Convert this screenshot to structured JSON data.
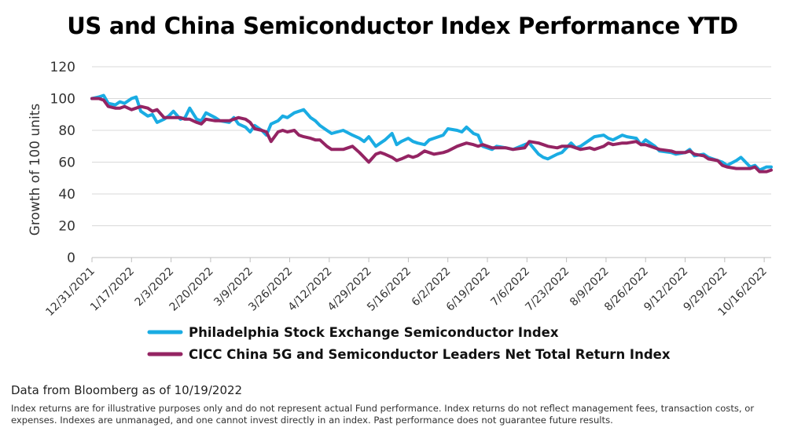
{
  "chart_data": {
    "type": "line",
    "title": "US and China Semiconductor Index Performance YTD",
    "ylabel": "Growth of 100 units",
    "xlabel": "",
    "ylim": [
      0,
      120
    ],
    "yticks": [
      "0",
      "20",
      "40",
      "60",
      "80",
      "100",
      "120"
    ],
    "x_tick_labels": [
      "12/31/2021",
      "1/17/2022",
      "2/3/2022",
      "2/20/2022",
      "3/9/2022",
      "3/26/2022",
      "4/12/2022",
      "4/29/2022",
      "5/16/2022",
      "6/2/2022",
      "6/19/2022",
      "7/6/2022",
      "7/23/2022",
      "8/9/2022",
      "8/26/2022",
      "9/12/2022",
      "9/29/2022",
      "10/16/2022"
    ],
    "x_range": [
      "12/31/2021",
      "10/19/2022"
    ],
    "legend_position": "bottom",
    "grid": "horizontal",
    "series": [
      {
        "name": "Philadelphia Stock Exchange Semiconductor Index",
        "color": "#1aace3",
        "dates": [
          "12/31/2021",
          "1/3/2022",
          "1/5/2022",
          "1/7/2022",
          "1/10/2022",
          "1/12/2022",
          "1/14/2022",
          "1/17/2022",
          "1/19/2022",
          "1/21/2022",
          "1/24/2022",
          "1/26/2022",
          "1/28/2022",
          "1/31/2022",
          "2/2/2022",
          "2/4/2022",
          "2/7/2022",
          "2/9/2022",
          "2/11/2022",
          "2/14/2022",
          "2/16/2022",
          "2/18/2022",
          "2/22/2022",
          "2/24/2022",
          "2/28/2022",
          "3/2/2022",
          "3/4/2022",
          "3/7/2022",
          "3/9/2022",
          "3/11/2022",
          "3/14/2022",
          "3/16/2022",
          "3/18/2022",
          "3/21/2022",
          "3/23/2022",
          "3/25/2022",
          "3/28/2022",
          "3/30/2022",
          "4/1/2022",
          "4/4/2022",
          "4/6/2022",
          "4/8/2022",
          "4/11/2022",
          "4/13/2022",
          "4/18/2022",
          "4/22/2022",
          "4/25/2022",
          "4/27/2022",
          "4/29/2022",
          "5/2/2022",
          "5/4/2022",
          "5/6/2022",
          "5/9/2022",
          "5/11/2022",
          "5/13/2022",
          "5/16/2022",
          "5/18/2022",
          "5/20/2022",
          "5/23/2022",
          "5/25/2022",
          "5/27/2022",
          "5/31/2022",
          "6/2/2022",
          "6/6/2022",
          "6/8/2022",
          "6/10/2022",
          "6/13/2022",
          "6/15/2022",
          "6/17/2022",
          "6/21/2022",
          "6/23/2022",
          "6/27/2022",
          "6/30/2022",
          "7/5/2022",
          "7/7/2022",
          "7/11/2022",
          "7/13/2022",
          "7/15/2022",
          "7/19/2022",
          "7/21/2022",
          "7/25/2022",
          "7/27/2022",
          "7/29/2022",
          "8/2/2022",
          "8/4/2022",
          "8/8/2022",
          "8/10/2022",
          "8/12/2022",
          "8/16/2022",
          "8/18/2022",
          "8/22/2022",
          "8/24/2022",
          "8/26/2022",
          "8/30/2022",
          "9/1/2022",
          "9/6/2022",
          "9/8/2022",
          "9/12/2022",
          "9/14/2022",
          "9/16/2022",
          "9/20/2022",
          "9/22/2022",
          "9/26/2022",
          "9/28/2022",
          "9/30/2022",
          "10/4/2022",
          "10/6/2022",
          "10/10/2022",
          "10/12/2022",
          "10/14/2022",
          "10/17/2022",
          "10/19/2022"
        ],
        "values": [
          100,
          101,
          102,
          97,
          96,
          98,
          97,
          100,
          101,
          92,
          89,
          90,
          85,
          87,
          89,
          92,
          87,
          88,
          94,
          87,
          86,
          91,
          88,
          86,
          85,
          88,
          84,
          82,
          79,
          83,
          80,
          77,
          84,
          86,
          89,
          88,
          91,
          92,
          93,
          88,
          86,
          83,
          80,
          78,
          80,
          77,
          75,
          73,
          76,
          70,
          72,
          74,
          78,
          71,
          73,
          75,
          73,
          72,
          71,
          74,
          75,
          77,
          81,
          80,
          79,
          82,
          78,
          77,
          70,
          68,
          70,
          69,
          68,
          71,
          72,
          65,
          63,
          62,
          65,
          66,
          72,
          69,
          70,
          74,
          76,
          77,
          75,
          74,
          77,
          76,
          75,
          71,
          74,
          70,
          67,
          66,
          65,
          66,
          68,
          64,
          65,
          63,
          61,
          60,
          58,
          61,
          63,
          57,
          58,
          55,
          57,
          57
        ]
      },
      {
        "name": "CICC China 5G and Semiconductor Leaders Net Total Return Index",
        "color": "#942463",
        "dates": [
          "12/31/2021",
          "1/3/2022",
          "1/5/2022",
          "1/7/2022",
          "1/10/2022",
          "1/12/2022",
          "1/14/2022",
          "1/17/2022",
          "1/19/2022",
          "1/21/2022",
          "1/24/2022",
          "1/26/2022",
          "1/28/2022",
          "1/31/2022",
          "2/2/2022",
          "2/4/2022",
          "2/7/2022",
          "2/9/2022",
          "2/11/2022",
          "2/14/2022",
          "2/16/2022",
          "2/18/2022",
          "2/22/2022",
          "2/24/2022",
          "2/28/2022",
          "3/2/2022",
          "3/4/2022",
          "3/7/2022",
          "3/9/2022",
          "3/11/2022",
          "3/14/2022",
          "3/16/2022",
          "3/18/2022",
          "3/21/2022",
          "3/23/2022",
          "3/25/2022",
          "3/28/2022",
          "3/30/2022",
          "4/1/2022",
          "4/4/2022",
          "4/6/2022",
          "4/8/2022",
          "4/11/2022",
          "4/13/2022",
          "4/18/2022",
          "4/22/2022",
          "4/25/2022",
          "4/27/2022",
          "4/29/2022",
          "5/2/2022",
          "5/4/2022",
          "5/6/2022",
          "5/9/2022",
          "5/11/2022",
          "5/13/2022",
          "5/16/2022",
          "5/18/2022",
          "5/20/2022",
          "5/23/2022",
          "5/25/2022",
          "5/27/2022",
          "5/31/2022",
          "6/2/2022",
          "6/6/2022",
          "6/8/2022",
          "6/10/2022",
          "6/13/2022",
          "6/15/2022",
          "6/17/2022",
          "6/21/2022",
          "6/23/2022",
          "6/27/2022",
          "6/30/2022",
          "7/5/2022",
          "7/7/2022",
          "7/11/2022",
          "7/13/2022",
          "7/15/2022",
          "7/19/2022",
          "7/21/2022",
          "7/25/2022",
          "7/27/2022",
          "7/29/2022",
          "8/2/2022",
          "8/4/2022",
          "8/8/2022",
          "8/10/2022",
          "8/12/2022",
          "8/16/2022",
          "8/18/2022",
          "8/22/2022",
          "8/24/2022",
          "8/26/2022",
          "8/30/2022",
          "9/1/2022",
          "9/6/2022",
          "9/8/2022",
          "9/12/2022",
          "9/14/2022",
          "9/16/2022",
          "9/20/2022",
          "9/22/2022",
          "9/26/2022",
          "9/28/2022",
          "9/30/2022",
          "10/4/2022",
          "10/6/2022",
          "10/10/2022",
          "10/12/2022",
          "10/14/2022",
          "10/17/2022",
          "10/19/2022"
        ],
        "values": [
          100,
          100,
          99,
          95,
          94,
          94,
          95,
          93,
          94,
          95,
          94,
          92,
          93,
          88,
          88,
          88,
          88,
          87,
          87,
          85,
          84,
          87,
          86,
          86,
          86,
          87,
          88,
          87,
          85,
          81,
          80,
          79,
          73,
          79,
          80,
          79,
          80,
          77,
          76,
          75,
          74,
          74,
          70,
          68,
          68,
          70,
          66,
          63,
          60,
          65,
          66,
          65,
          63,
          61,
          62,
          64,
          63,
          64,
          67,
          66,
          65,
          66,
          67,
          70,
          71,
          72,
          71,
          70,
          71,
          69,
          69,
          69,
          68,
          69,
          73,
          72,
          71,
          70,
          69,
          70,
          70,
          69,
          68,
          69,
          68,
          70,
          72,
          71,
          72,
          72,
          73,
          71,
          71,
          69,
          68,
          67,
          66,
          66,
          67,
          65,
          64,
          62,
          61,
          58,
          57,
          56,
          56,
          56,
          57,
          54,
          54,
          55
        ]
      }
    ]
  },
  "footer": {
    "source": "Data from Bloomberg as of 10/19/2022",
    "disclaimer": "Index returns are for illustrative purposes only and do not represent actual Fund performance. Index returns do not reflect management fees, transaction costs, or expenses. Indexes are unmanaged, and one cannot invest directly in an index. Past performance does not guarantee future results."
  }
}
